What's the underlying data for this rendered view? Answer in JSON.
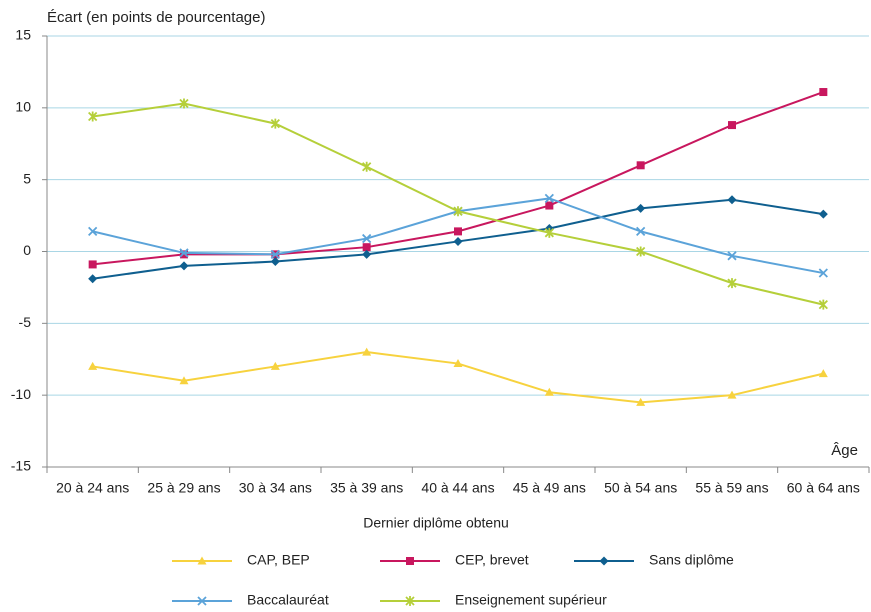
{
  "chart_data": {
    "type": "line",
    "y_axis_title": "Écart (en points de pourcentage)",
    "x_axis_end_label": "Âge",
    "x_axis_title": "Dernier diplôme obtenu",
    "categories": [
      "20 à 24 ans",
      "25 à 29 ans",
      "30 à 34 ans",
      "35 à 39 ans",
      "40 à 44 ans",
      "45 à 49 ans",
      "50 à 54 ans",
      "55 à 59 ans",
      "60 à 64 ans"
    ],
    "ylim": [
      -15,
      15
    ],
    "yticks": [
      -15,
      -10,
      -5,
      0,
      5,
      10,
      15
    ],
    "grid": true,
    "series": [
      {
        "name": "CAP, BEP",
        "color": "#f7d23e",
        "marker": "triangle",
        "values": [
          -8.0,
          -9.0,
          -8.0,
          -7.0,
          -7.8,
          -9.8,
          -10.5,
          -10.0,
          -8.5
        ]
      },
      {
        "name": "CEP, brevet",
        "color": "#c8175e",
        "marker": "square",
        "values": [
          -0.9,
          -0.2,
          -0.2,
          0.3,
          1.4,
          3.2,
          6.0,
          8.8,
          11.1
        ]
      },
      {
        "name": "Sans diplôme",
        "color": "#0f5f8f",
        "marker": "diamond",
        "values": [
          -1.9,
          -1.0,
          -0.7,
          -0.2,
          0.7,
          1.6,
          3.0,
          3.6,
          2.6
        ]
      },
      {
        "name": "Baccalauréat",
        "color": "#5ba3d9",
        "marker": "x",
        "values": [
          1.4,
          -0.1,
          -0.2,
          0.9,
          2.8,
          3.7,
          1.4,
          -0.3,
          -1.5
        ]
      },
      {
        "name": "Enseignement supérieur",
        "color": "#b5cf3a",
        "marker": "asterisk",
        "values": [
          9.4,
          10.3,
          8.9,
          5.9,
          2.8,
          1.3,
          0.0,
          -2.2,
          -3.7
        ]
      }
    ]
  }
}
